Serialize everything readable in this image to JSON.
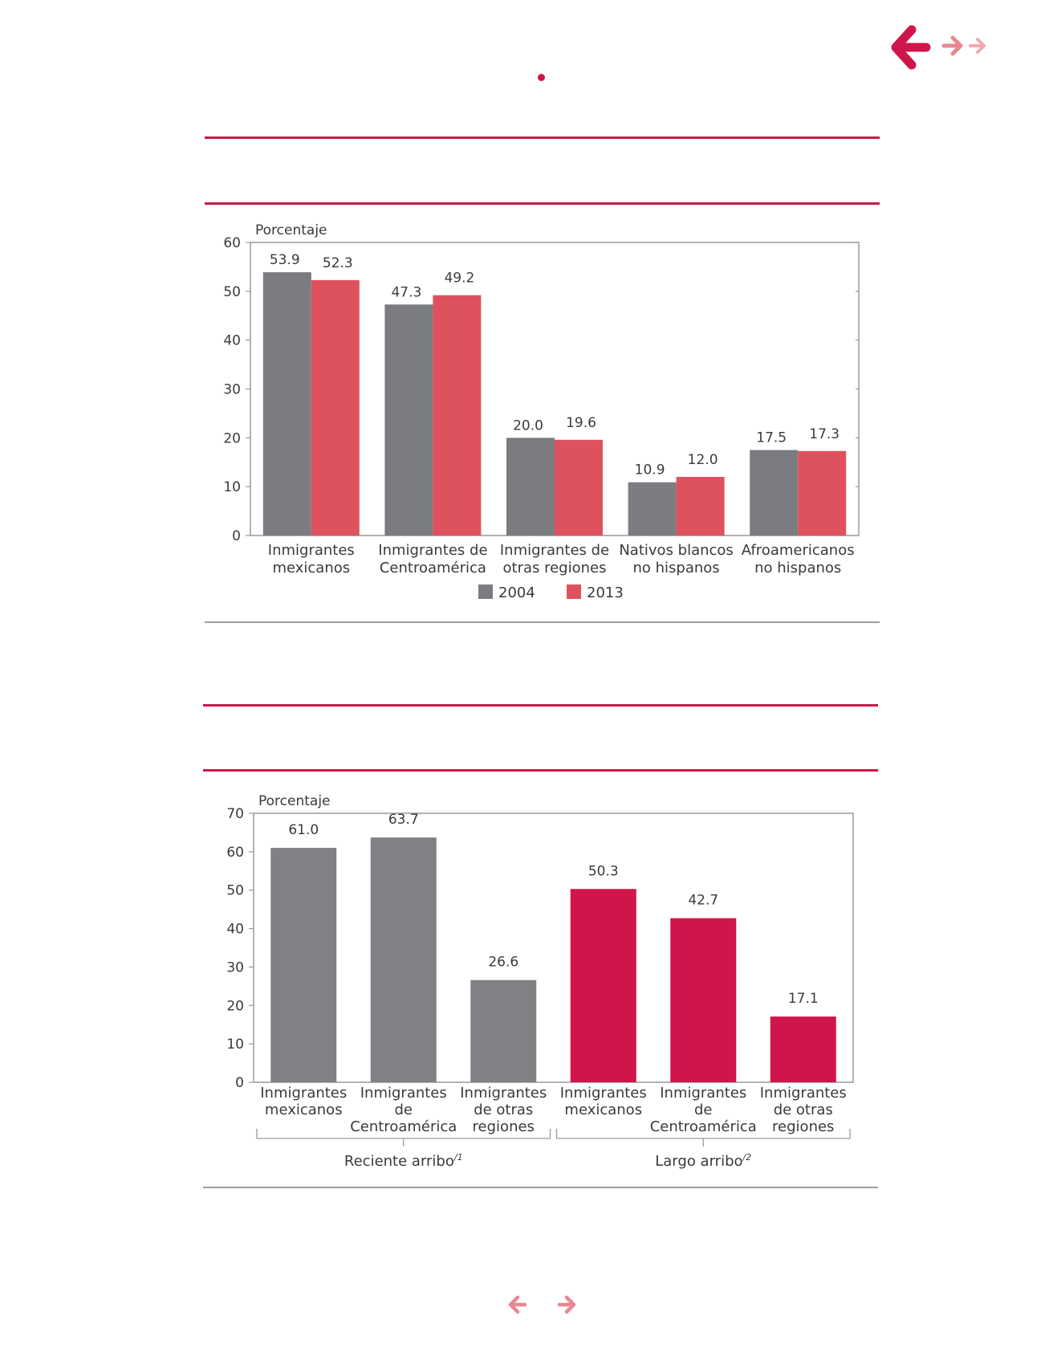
{
  "colors": {
    "accent": "#d0154a",
    "gray_bar": "#7b7c80",
    "red_bar": "#de525e",
    "crimson_bar": "#d0154a",
    "nav_light": "#e8888f",
    "nav_lighter": "#f0a9ad"
  },
  "icons": {
    "back_large": "arrow-left-icon",
    "forward_small": "arrow-right-icon",
    "forward_smaller": "arrow-right-icon",
    "prev_page": "arrow-left-icon",
    "next_page": "arrow-right-icon"
  },
  "chart_data": [
    {
      "type": "bar",
      "title": "",
      "ylabel": "Porcentaje",
      "xlabel": "",
      "ylim": [
        0,
        60
      ],
      "yticks": [
        0,
        10,
        20,
        30,
        40,
        50,
        60
      ],
      "grid": false,
      "legend_position": "bottom-center",
      "categories": [
        [
          "Inmigrantes",
          "mexicanos"
        ],
        [
          "Inmigrantes de",
          "Centroamérica"
        ],
        [
          "Inmigrantes de",
          "otras regiones"
        ],
        [
          "Nativos blancos",
          "no hispanos"
        ],
        [
          "Afroamericanos",
          "no hispanos"
        ]
      ],
      "series": [
        {
          "name": "2004",
          "color": "#7b7c80",
          "values": [
            53.9,
            47.3,
            20.0,
            10.9,
            17.5
          ],
          "labels": [
            "53.9",
            "47.3",
            "20.0",
            "10.9",
            "17.5"
          ]
        },
        {
          "name": "2013",
          "color": "#de525e",
          "values": [
            52.3,
            49.2,
            19.6,
            12.0,
            17.3
          ],
          "labels": [
            "52.3",
            "49.2",
            "19.6",
            "12.0",
            "17.3"
          ]
        }
      ]
    },
    {
      "type": "bar",
      "title": "",
      "ylabel": "Porcentaje",
      "xlabel": "",
      "ylim": [
        0,
        70
      ],
      "yticks": [
        0,
        10,
        20,
        30,
        40,
        50,
        60,
        70
      ],
      "grid": false,
      "categories": [
        [
          "Inmigrantes",
          "mexicanos"
        ],
        [
          "Inmigrantes",
          "de",
          "Centroamérica"
        ],
        [
          "Inmigrantes",
          "de otras",
          "regiones"
        ],
        [
          "Inmigrantes",
          "mexicanos"
        ],
        [
          "Inmigrantes",
          "de",
          "Centroamérica"
        ],
        [
          "Inmigrantes",
          "de otras",
          "regiones"
        ]
      ],
      "values": [
        61.0,
        63.7,
        26.6,
        50.3,
        42.7,
        17.1
      ],
      "labels": [
        "61.0",
        "63.7",
        "26.6",
        "50.3",
        "42.7",
        "17.1"
      ],
      "colors": [
        "#808184",
        "#808184",
        "#808184",
        "#d0154a",
        "#d0154a",
        "#d0154a"
      ],
      "groups": [
        {
          "label": "Reciente arribo",
          "note": "/1",
          "start": 0,
          "end": 2
        },
        {
          "label": "Largo arribo",
          "note": "/2",
          "start": 3,
          "end": 5
        }
      ]
    }
  ]
}
